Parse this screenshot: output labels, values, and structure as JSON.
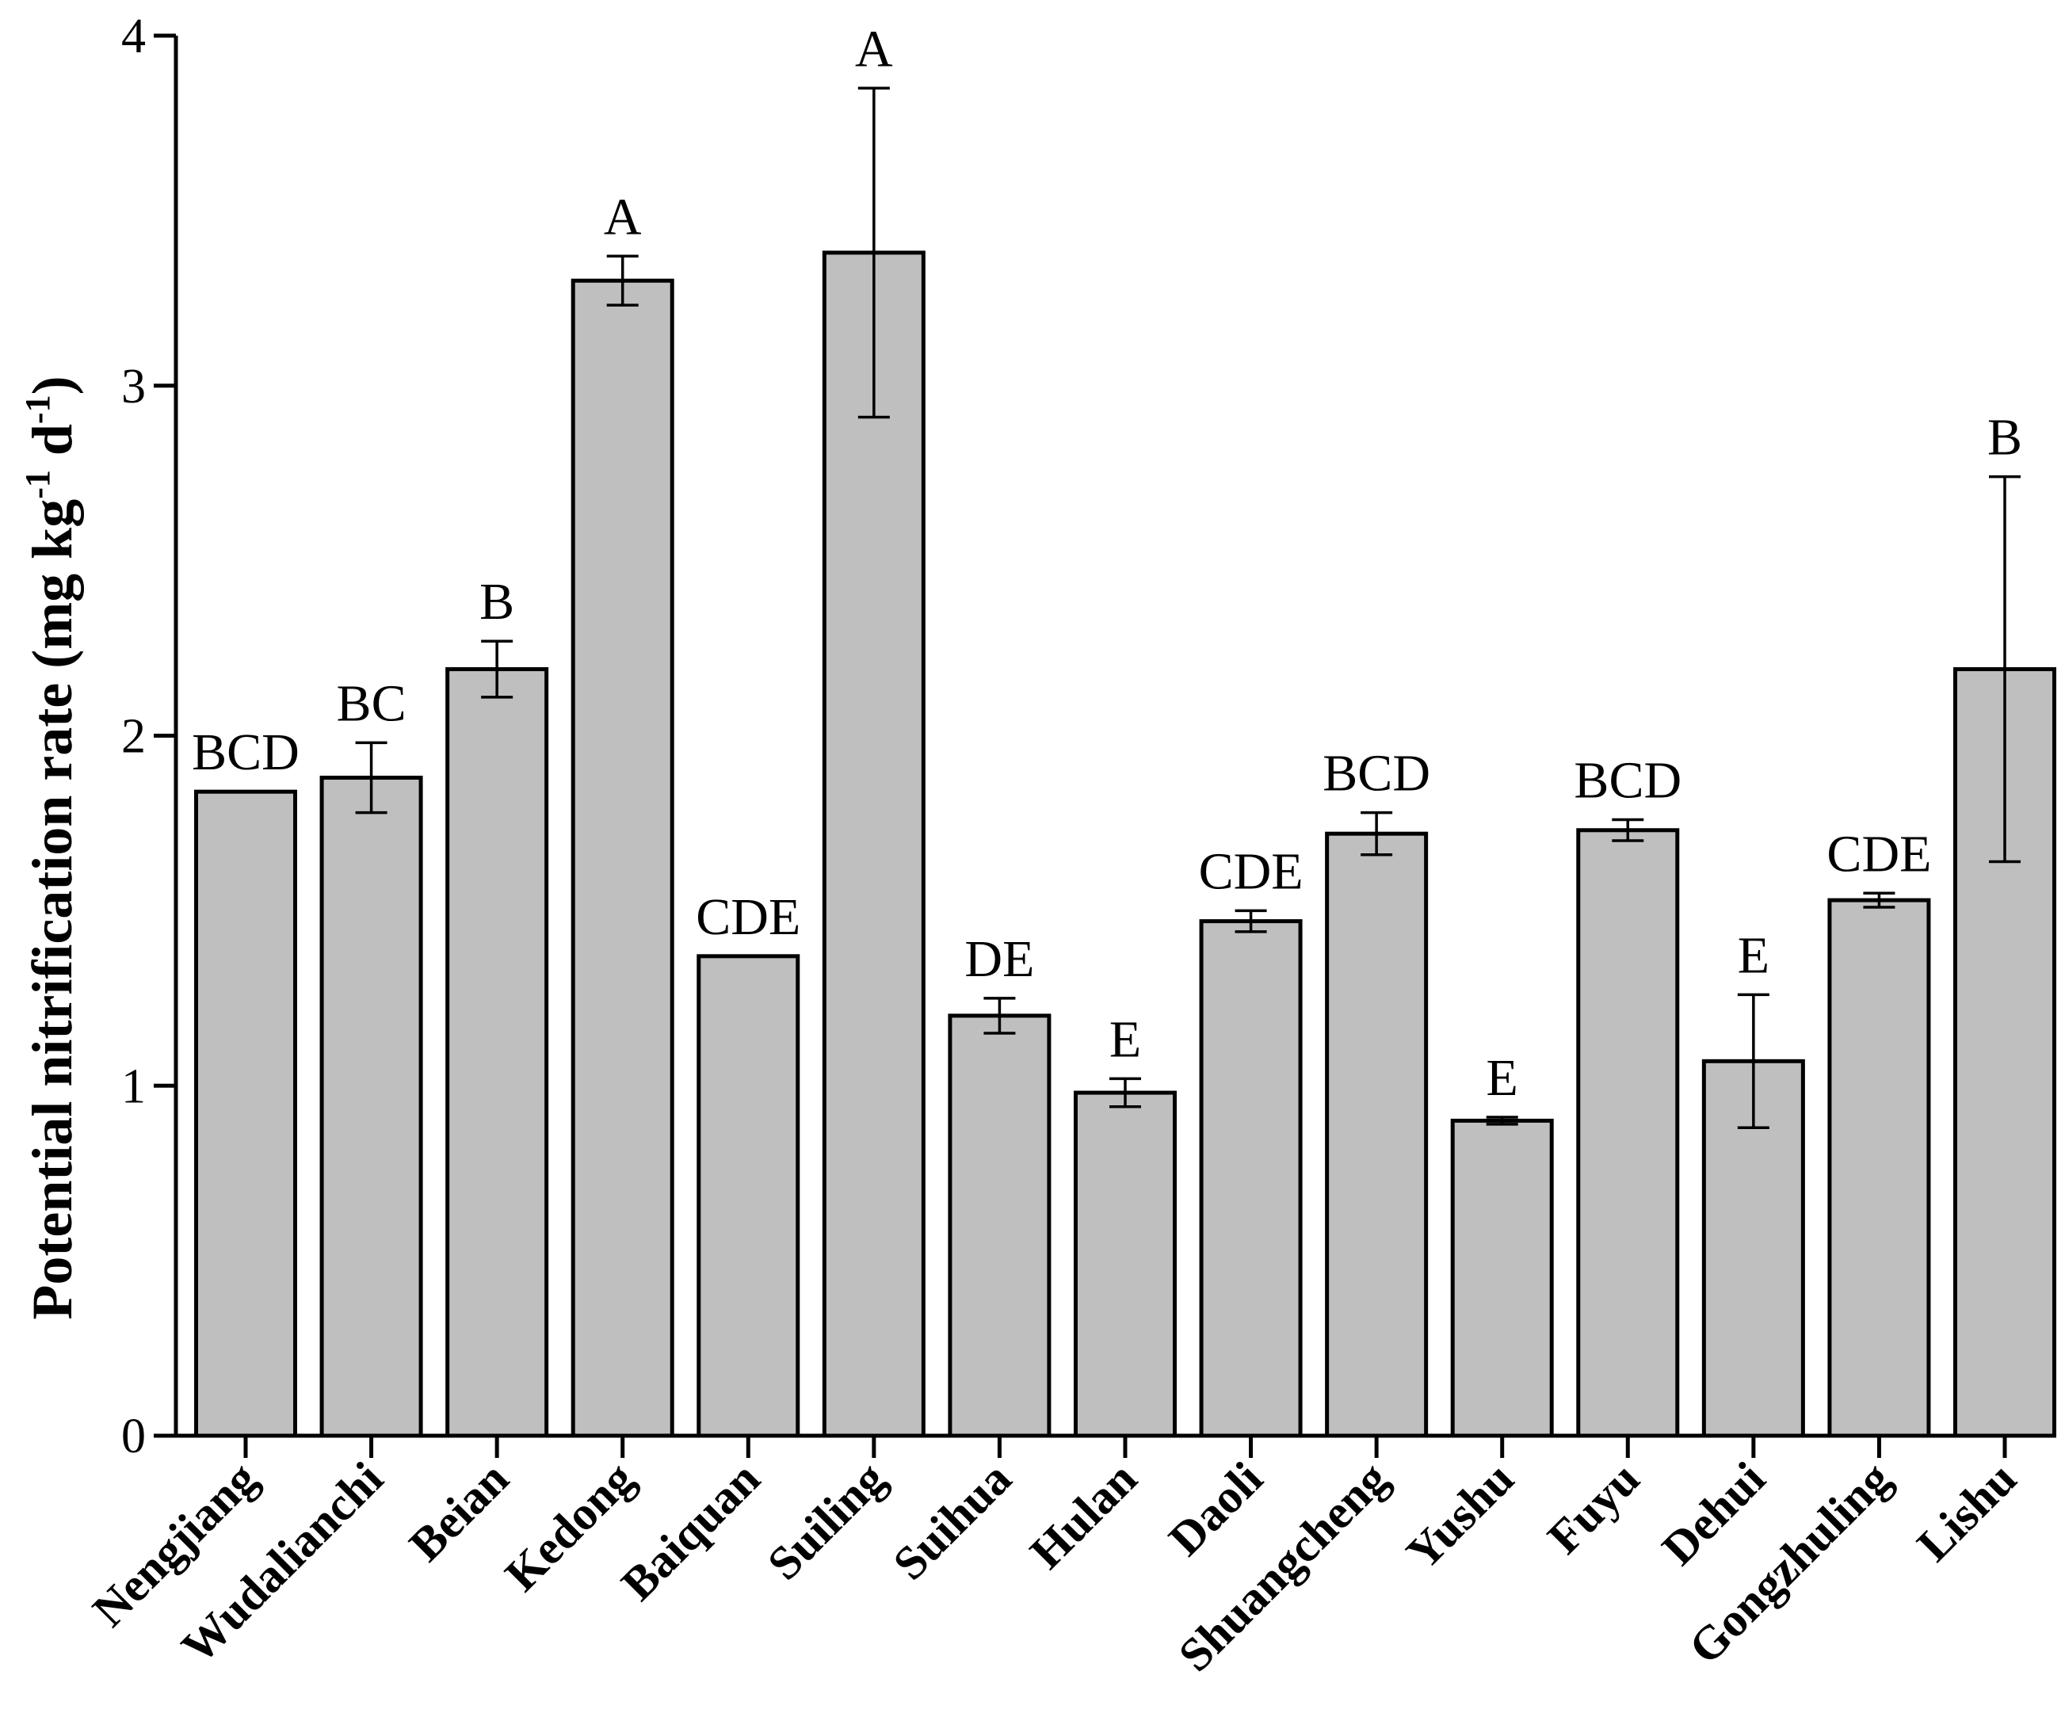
{
  "chart_data": {
    "type": "bar",
    "title": "",
    "xlabel": "",
    "ylabel": {
      "main": "Potential nitrification rate (mg kg",
      "sup1": "-1",
      "mid": " d",
      "sup2": "-1",
      "end": ")"
    },
    "ylim": [
      0,
      4
    ],
    "yticks": [
      0,
      1,
      2,
      3,
      4
    ],
    "ytick_labels": [
      "0",
      "1",
      "2",
      "3",
      "4"
    ],
    "bar_color": "#bfbfbf",
    "categories": [
      "Nengjiang",
      "Wudalianchi",
      "Beian",
      "Kedong",
      "Baiquan",
      "Suiling",
      "Suihua",
      "Hulan",
      "Daoli",
      "Shuangcheng",
      "Yushu",
      "Fuyu",
      "Dehui",
      "Gongzhuling",
      "Lishu"
    ],
    "values": [
      1.84,
      1.88,
      2.19,
      3.3,
      1.37,
      3.38,
      1.2,
      0.98,
      1.47,
      1.72,
      0.9,
      1.73,
      1.07,
      1.53,
      2.19
    ],
    "errors": [
      0.0,
      0.1,
      0.08,
      0.07,
      0.0,
      0.47,
      0.05,
      0.04,
      0.03,
      0.06,
      0.01,
      0.03,
      0.19,
      0.02,
      0.55
    ],
    "significance": [
      "BCD",
      "BC",
      "B",
      "A",
      "CDE",
      "A",
      "DE",
      "E",
      "CDE",
      "BCD",
      "E",
      "BCD",
      "E",
      "CDE",
      "B"
    ]
  }
}
